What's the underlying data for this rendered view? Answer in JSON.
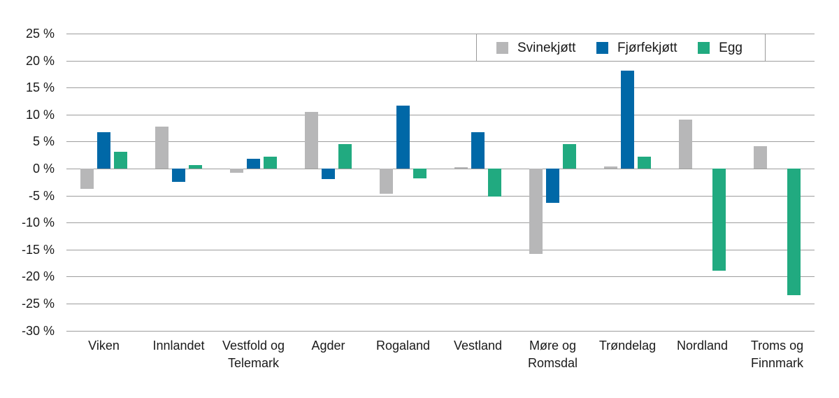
{
  "figure": {
    "background": "#ffffff",
    "text_color": "#1a1a1a",
    "gridline_color": "#9d9d9d"
  },
  "legend": {
    "border_color": "#999999",
    "items": [
      {
        "label": "Svinekjøtt",
        "color": "#b7b7b8"
      },
      {
        "label": "Fjørfekjøtt",
        "color": "#0068a7"
      },
      {
        "label": "Egg",
        "color": "#21aa80"
      }
    ]
  },
  "chart_data": {
    "type": "bar",
    "title": "",
    "xlabel": "",
    "ylabel": "",
    "ylim": [
      -30,
      25
    ],
    "grid": true,
    "legend_position": "top-right",
    "y_ticks": [
      25,
      20,
      15,
      10,
      5,
      0,
      -5,
      -10,
      -15,
      -20,
      -25,
      -30
    ],
    "y_tick_suffix": " %",
    "categories": [
      "Viken",
      "Innlandet",
      "Vestfold og Telemark",
      "Agder",
      "Rogaland",
      "Vestland",
      "Møre og Romsdal",
      "Trøndelag",
      "Nordland",
      "Troms og Finnmark"
    ],
    "categories_wrapped": [
      [
        "Viken"
      ],
      [
        "Innlandet"
      ],
      [
        "Vestfold og",
        "Telemark"
      ],
      [
        "Agder"
      ],
      [
        "Rogaland"
      ],
      [
        "Vestland"
      ],
      [
        "Møre og",
        "Romsdal"
      ],
      [
        "Trøndelag"
      ],
      [
        "Nordland"
      ],
      [
        "Troms og",
        "Finnmark"
      ]
    ],
    "series": [
      {
        "name": "Svinekjøtt",
        "color": "#b7b7b8",
        "values": [
          -3.7,
          7.8,
          -0.8,
          10.5,
          -4.6,
          0.3,
          -15.8,
          0.4,
          9.1,
          4.1
        ]
      },
      {
        "name": "Fjørfekjøtt",
        "color": "#0068a7",
        "values": [
          6.7,
          -2.4,
          1.8,
          -2.0,
          11.6,
          6.7,
          -6.3,
          18.2,
          null,
          null
        ]
      },
      {
        "name": "Egg",
        "color": "#21aa80",
        "values": [
          3.1,
          0.7,
          2.2,
          4.5,
          -1.8,
          -5.2,
          4.5,
          2.2,
          -18.9,
          -23.5
        ]
      }
    ]
  }
}
